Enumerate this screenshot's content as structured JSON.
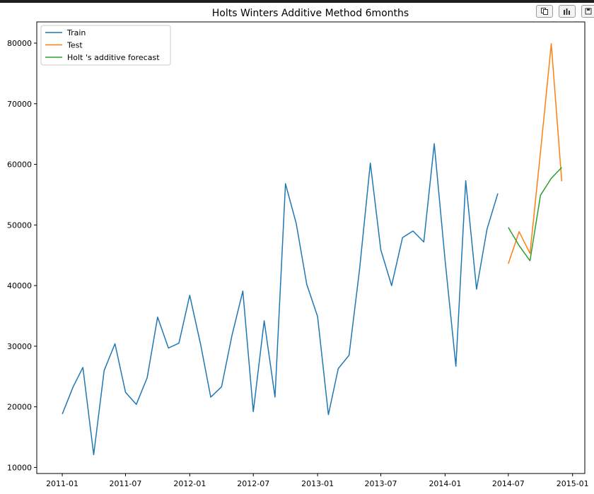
{
  "toolbar": {
    "icons": [
      "copy-icon",
      "chart-icon",
      "save-icon"
    ]
  },
  "chart_data": {
    "type": "line",
    "title": "Holts Winters Additive Method 6months",
    "xlabel": "",
    "ylabel": "",
    "x_ticks": [
      "2011-01",
      "2011-07",
      "2012-01",
      "2012-07",
      "2013-01",
      "2013-07",
      "2014-01",
      "2014-07",
      "2015-01"
    ],
    "y_ticks": [
      10000,
      20000,
      30000,
      40000,
      50000,
      60000,
      70000,
      80000
    ],
    "xlim": [
      "2010-10-20",
      "2015-02-05"
    ],
    "ylim": [
      9000,
      83500
    ],
    "legend": {
      "position": "top-left"
    },
    "grid": false,
    "series": [
      {
        "name": "Train",
        "color": "#1f77b4",
        "x": [
          "2011-01",
          "2011-02",
          "2011-03",
          "2011-04",
          "2011-05",
          "2011-06",
          "2011-07",
          "2011-08",
          "2011-09",
          "2011-10",
          "2011-11",
          "2011-12",
          "2012-01",
          "2012-02",
          "2012-03",
          "2012-04",
          "2012-05",
          "2012-06",
          "2012-07",
          "2012-08",
          "2012-09",
          "2012-10",
          "2012-11",
          "2012-12",
          "2013-01",
          "2013-02",
          "2013-03",
          "2013-04",
          "2013-05",
          "2013-06",
          "2013-07",
          "2013-08",
          "2013-09",
          "2013-10",
          "2013-11",
          "2013-12",
          "2014-01",
          "2014-02",
          "2014-03",
          "2014-04",
          "2014-05",
          "2014-06"
        ],
        "y": [
          18800,
          23300,
          26500,
          12100,
          26000,
          30400,
          22400,
          20400,
          24800,
          34800,
          29700,
          30500,
          38400,
          30300,
          21600,
          23300,
          31800,
          39100,
          19200,
          34200,
          21600,
          56800,
          50200,
          40200,
          34900,
          18700,
          26300,
          28500,
          42600,
          60200,
          45900,
          40000,
          47900,
          49000,
          47200,
          63400,
          44200,
          26700,
          57300,
          39400,
          49300,
          55200
        ]
      },
      {
        "name": "Test",
        "color": "#ff7f0e",
        "x": [
          "2014-07",
          "2014-08",
          "2014-09",
          "2014-10",
          "2014-11",
          "2014-12"
        ],
        "y": [
          43600,
          48900,
          45300,
          62000,
          79900,
          57200
        ]
      },
      {
        "name": "Holt 's additive forecast",
        "color": "#2ca02c",
        "x": [
          "2014-07",
          "2014-08",
          "2014-09",
          "2014-10",
          "2014-11",
          "2014-12"
        ],
        "y": [
          49600,
          46600,
          44100,
          54900,
          57700,
          59500
        ]
      }
    ]
  }
}
